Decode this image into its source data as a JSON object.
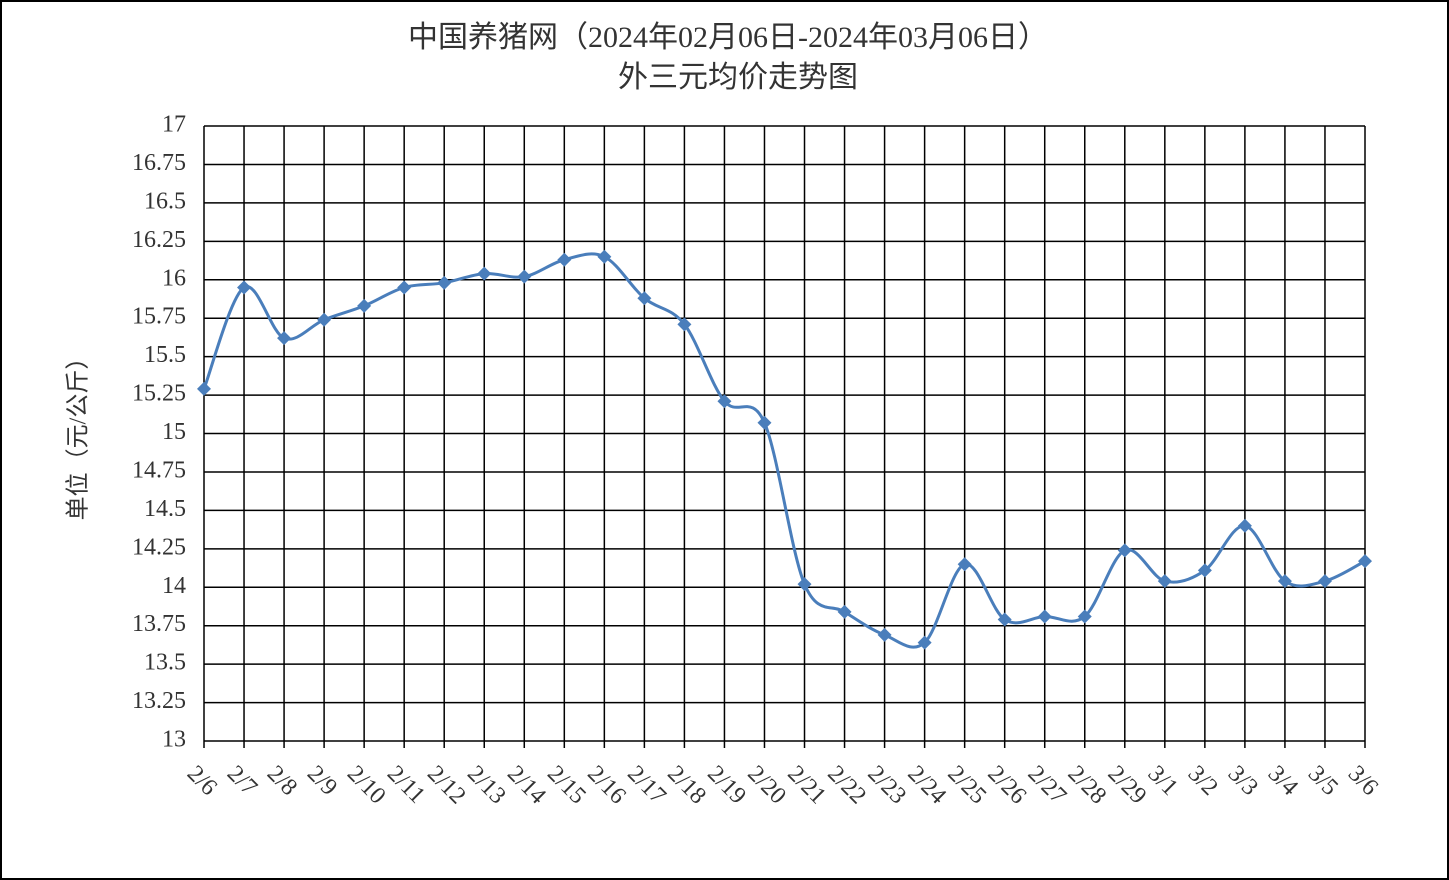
{
  "chart_data": {
    "type": "line",
    "title": "中国养猪网（2024年02月06日-2024年03月06日）",
    "subtitle": "外三元均价走势图",
    "y_label": "单位（元/公斤）",
    "categories": [
      "2/6",
      "2/7",
      "2/8",
      "2/9",
      "2/10",
      "2/11",
      "2/12",
      "2/13",
      "2/14",
      "2/15",
      "2/16",
      "2/17",
      "2/18",
      "2/19",
      "2/20",
      "2/21",
      "2/22",
      "2/23",
      "2/24",
      "2/25",
      "2/26",
      "2/27",
      "2/28",
      "2/29",
      "3/1",
      "3/2",
      "3/3",
      "3/4",
      "3/5",
      "3/6"
    ],
    "series": [
      {
        "color": "#4a7ebb",
        "values": [
          15.29,
          15.95,
          15.62,
          15.74,
          15.83,
          15.95,
          15.98,
          16.04,
          16.02,
          16.13,
          16.15,
          15.88,
          15.71,
          15.21,
          15.07,
          14.02,
          13.84,
          13.69,
          13.64,
          14.15,
          13.79,
          13.81,
          13.81,
          14.24,
          14.04,
          14.11,
          14.4,
          14.04,
          14.04,
          14.17
        ]
      }
    ],
    "ylim": [
      13,
      17
    ],
    "yticks": [
      13,
      13.25,
      13.5,
      13.75,
      14,
      14.25,
      14.5,
      14.75,
      15,
      15.25,
      15.5,
      15.75,
      16,
      16.25,
      16.5,
      16.75,
      17
    ],
    "grid": true
  }
}
